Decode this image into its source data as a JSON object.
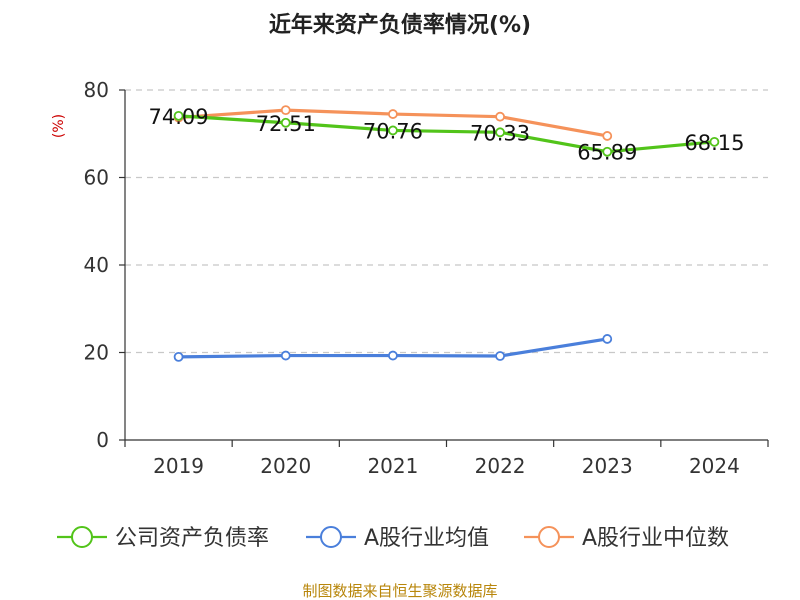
{
  "chart_data": {
    "type": "line",
    "title": "近年来资产负债率情况(%)",
    "ylabel": "(%)",
    "xlabel": "",
    "categories": [
      "2019",
      "2020",
      "2021",
      "2022",
      "2023",
      "2024"
    ],
    "ylim": [
      0,
      80
    ],
    "yticks": [
      0,
      20,
      40,
      60,
      80
    ],
    "grid": true,
    "legend_position": "bottom",
    "series": [
      {
        "name": "公司资产负债率",
        "color": "#52c41a",
        "values": [
          74.09,
          72.51,
          70.76,
          70.33,
          65.89,
          68.15
        ],
        "labels": [
          "74.09",
          "72.51",
          "70.76",
          "70.33",
          "65.89",
          "68.15"
        ]
      },
      {
        "name": "A股行业均值",
        "color": "#4a7fdb",
        "values": [
          19.0,
          19.3,
          19.3,
          19.2,
          23.1,
          null
        ]
      },
      {
        "name": "A股行业中位数",
        "color": "#f5925a",
        "values": [
          73.7,
          75.4,
          74.5,
          73.9,
          69.5,
          null
        ]
      }
    ]
  },
  "footer": {
    "source": "制图数据来自恒生聚源数据库"
  }
}
